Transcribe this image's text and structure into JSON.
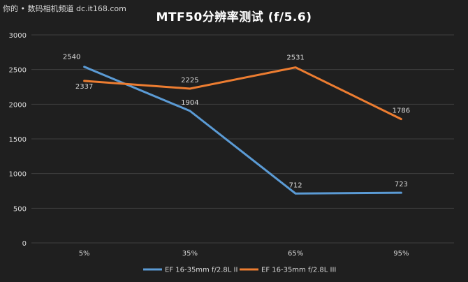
{
  "watermark": "你的 • 数码相机频道 dc.it168.com",
  "chart_data": {
    "type": "line",
    "title": "MTF50分辨率测试 (f/5.6)",
    "xlabel": "",
    "ylabel": "",
    "categories": [
      "5%",
      "35%",
      "65%",
      "95%"
    ],
    "y_ticks": [
      "0",
      "500",
      "1000",
      "1500",
      "2000",
      "2500",
      "3000"
    ],
    "ylim": [
      0,
      3000
    ],
    "grid": true,
    "legend_position": "bottom",
    "series": [
      {
        "name": "EF 16-35mm f/2.8L II",
        "color": "#5b9bd5",
        "values": [
          2540,
          1904,
          712,
          723
        ],
        "labels": [
          "2540",
          "1904",
          "712",
          "723"
        ]
      },
      {
        "name": "EF 16-35mm f/2.8L III",
        "color": "#ed7d31",
        "values": [
          2337,
          2225,
          2531,
          1786
        ],
        "labels": [
          "2337",
          "2225",
          "2531",
          "1786"
        ]
      }
    ]
  }
}
